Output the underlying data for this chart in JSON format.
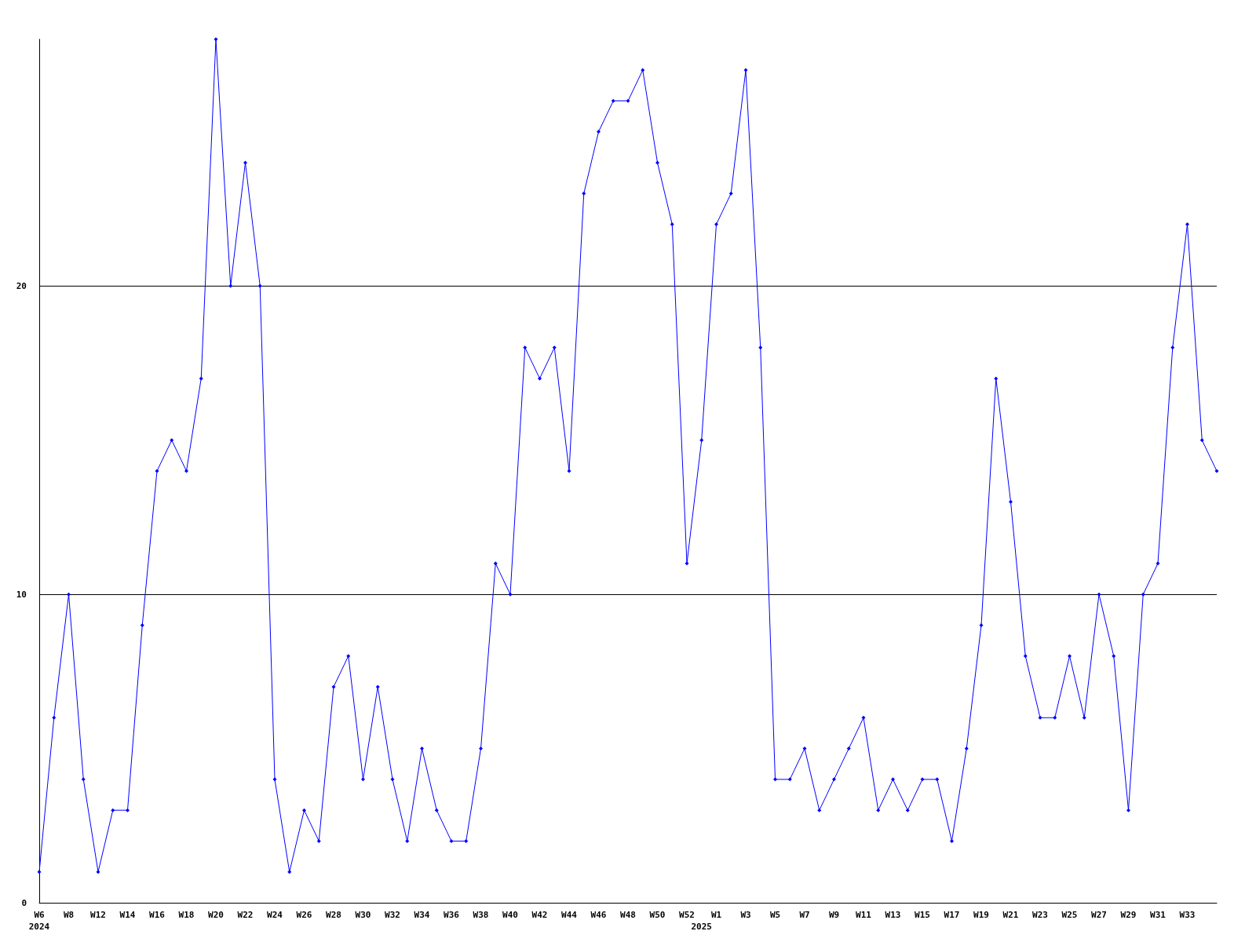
{
  "chart_data": {
    "type": "line",
    "categories": [
      "W6\n2024",
      null,
      "W8",
      null,
      "W12",
      null,
      "W14",
      null,
      "W16",
      null,
      "W18",
      null,
      "W20",
      null,
      "W22",
      null,
      "W24",
      null,
      "W26",
      null,
      "W28",
      null,
      "W30",
      null,
      "W32",
      null,
      "W34",
      null,
      "W36",
      null,
      "W38",
      null,
      "W40",
      null,
      "W42",
      null,
      "W44",
      null,
      "W46",
      null,
      "W48",
      null,
      "W50",
      null,
      "W52",
      "\n2025",
      "W1",
      null,
      "W3",
      null,
      "W5",
      null,
      "W7",
      null,
      "W9",
      null,
      "W11",
      null,
      "W13",
      null,
      "W15",
      null,
      "W17",
      null,
      "W19",
      null,
      "W21",
      null,
      "W23",
      null,
      "W25",
      null,
      "W27",
      null,
      "W29",
      null,
      "W31",
      null,
      "W33",
      null,
      null
    ],
    "series": [
      {
        "color": "#0000ff",
        "values": [
          1,
          6,
          10,
          4,
          1,
          3,
          3,
          9,
          14,
          15,
          14,
          17,
          28,
          20,
          24,
          20,
          4,
          1,
          3,
          2,
          7,
          8,
          4,
          7,
          4,
          2,
          5,
          3,
          2,
          2,
          5,
          11,
          10,
          18,
          17,
          18,
          14,
          23,
          25,
          26,
          26,
          27,
          24,
          22,
          11,
          15,
          22,
          23,
          27,
          18,
          4,
          4,
          5,
          3,
          4,
          5,
          6,
          3,
          4,
          3,
          4,
          4,
          2,
          5,
          9,
          17,
          13,
          8,
          6,
          6,
          8,
          6,
          10,
          8,
          3,
          10,
          11,
          18,
          22,
          15,
          14
        ]
      }
    ],
    "ylim": [
      0,
      28
    ],
    "yticks": [
      0,
      10,
      20
    ],
    "grid": "y",
    "marker": "diamond",
    "line_style": "solid"
  }
}
